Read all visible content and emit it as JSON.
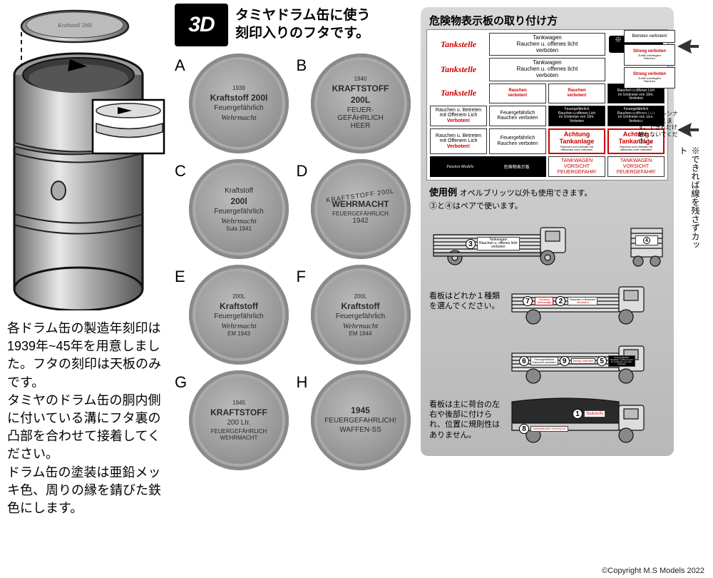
{
  "header": {
    "badge": "3D",
    "text_l1": "タミヤドラム缶に使う",
    "text_l2": "刻印入りのフタです。"
  },
  "left_text": "各ドラム缶の製造年刻印は1939年~45年を用意しました。フタの刻印は天板のみです。\nタミヤのドラム缶の胴内側に付いている溝にフタ裏の凸部を合わせて接着してください。\nドラム缶の塗装は亜鉛メッキ色、周りの縁を錆びた鉄色にします。",
  "lids": [
    {
      "label": "A",
      "l1": "1939",
      "l2": "Kraftstoff 200l",
      "l3": "Feuergefährlich",
      "l4": "Wehrmacht"
    },
    {
      "label": "B",
      "l1": "1940",
      "l2": "KRAFTSTOFF",
      "l3": "200L",
      "l4": "FEUER-\nGEFÄHRLICH\nHEER"
    },
    {
      "label": "C",
      "l1": "",
      "l2": "Kraftstoff",
      "l3": "200l",
      "l4": "Feuergefährlich",
      "l5": "Wehrmacht",
      "l6": "Sula 1941"
    },
    {
      "label": "D",
      "l1": "",
      "l2": "KRAFTSTOFF 200L",
      "l3": "WEHRMACHT",
      "l4": "FEUERGEFÄHRLICH",
      "l5": "1942"
    },
    {
      "label": "E",
      "l1": "200L",
      "l2": "Kraftstoff",
      "l3": "Feuergefährlich",
      "l4": "Wehrmacht",
      "l5": "EM 1943"
    },
    {
      "label": "F",
      "l1": "200L",
      "l2": "Kraftstoff",
      "l3": "Feuergefährlich",
      "l4": "Wehrmacht",
      "l5": "EM 1944"
    },
    {
      "label": "G",
      "l1": "1945",
      "l2": "KRAFTSTOFF",
      "l3": "200 Ltr.",
      "l4": "FEUERGEFÄHRLICH",
      "l5": "WEHRMACHT"
    },
    {
      "label": "H",
      "l1": "",
      "l2": "1945",
      "l3": "FEUERGEFAHRLICH!",
      "l4": "WAFFEN-SS"
    }
  ],
  "right": {
    "title": "危険物表示板の取り付け方",
    "tombo_label": "※トンボでカット",
    "sheet": {
      "tankstelle": "Tankstelle",
      "tankwagen": "Tankwagen\nRauchen u. offenes licht\nverboten",
      "rauchen_verboten_small": "Rauchen\nverboten!",
      "feuer_black": "Feuergefährlich\nRauchen u.offenes Lich\nim Umkreise von 10m.\nVerboten",
      "rauchen_betreten": "Rauchen u. Betreten\nmit Offenem Lich",
      "verboten": "Verboten!",
      "feuer_rauchen": "Feuergefährlich\nRauchen verboten",
      "achtung_tank": "Achtung\nTankanlage",
      "achtung_sub": "Rauchen und Umhalle mit\noffenenes Licht verboten!",
      "betreten_verbot": "Betreten\nverboten!",
      "tankwagen_vorsicht": "TANKWAGEN\nVORSICHT\nFEUERGEFAHR!",
      "streog": "Streog verboten",
      "streog_sub": "Zutritt Unbefugten\nRauchen",
      "passion": "Passion Models",
      "kiken": "危険物表示板"
    },
    "usage_title": "使用例",
    "usage_sub1": "オペルブリッツ以外も使用できます。",
    "usage_sub2": "③と④はペアで使います。",
    "truck_note1": "看板はどれか１種類を選んでください。",
    "truck_note2": "看板は主に荷台の左右や後部に付けられ、位置に規則性はありません。"
  },
  "far_right": {
    "tiny_top": "※図案はシンナー等で消えます。できるだけ触れないでください。",
    "vert": "※できれば線を残さずカット"
  },
  "copyright": "©Copyright M.S Models 2022",
  "colors": {
    "red": "#c00000",
    "grey_bg": "#c8c8c8",
    "lid_light": "#bbbbbb",
    "lid_dark": "#777777"
  }
}
